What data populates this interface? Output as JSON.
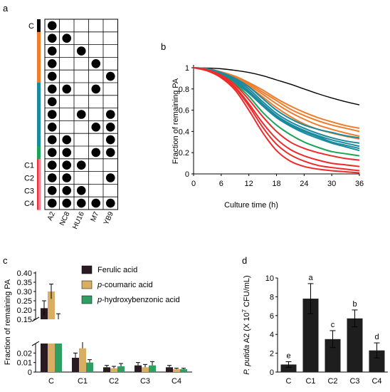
{
  "colors": {
    "black": "#000000",
    "orange": "#ef7d2d",
    "teal": "#1b8a9e",
    "green": "#1aa55a",
    "red": "#ee2b2b",
    "ferulic": "#2a1a22",
    "coumaric": "#d9ad62",
    "hydroxy": "#2f9e63",
    "bar_d": "#1e1e1e",
    "pink": "#f7b2d8"
  },
  "panel_a": {
    "label": "a",
    "columns": [
      "A2",
      "NC8",
      "HU16",
      "M7",
      "YB9"
    ],
    "row_labels": [
      "C",
      "",
      "",
      "",
      "",
      "",
      "",
      "",
      "",
      "",
      "",
      "C1",
      "C2",
      "C3",
      "C4"
    ],
    "row_groups": [
      "black",
      "orange",
      "orange",
      "orange",
      "orange",
      "teal",
      "teal",
      "teal",
      "teal",
      "teal",
      "green",
      "red",
      "red",
      "red",
      "red"
    ],
    "grid": [
      [
        1,
        0,
        0,
        0,
        0
      ],
      [
        1,
        1,
        0,
        0,
        0
      ],
      [
        1,
        0,
        1,
        0,
        0
      ],
      [
        1,
        0,
        0,
        1,
        0
      ],
      [
        1,
        0,
        0,
        0,
        1
      ],
      [
        1,
        1,
        0,
        1,
        0
      ],
      [
        1,
        0,
        0,
        0,
        0
      ],
      [
        1,
        0,
        1,
        0,
        1
      ],
      [
        1,
        0,
        0,
        1,
        1
      ],
      [
        1,
        1,
        0,
        0,
        1
      ],
      [
        1,
        1,
        0,
        1,
        1
      ],
      [
        1,
        1,
        1,
        0,
        0
      ],
      [
        1,
        1,
        0,
        0,
        1
      ],
      [
        1,
        1,
        1,
        0,
        0
      ],
      [
        1,
        1,
        1,
        1,
        1
      ]
    ]
  },
  "chart_data": [
    {
      "panel": "b",
      "type": "line",
      "xlabel": "Culture time (h)",
      "ylabel": "Fraction of remaining PA",
      "xlim": [
        0,
        36
      ],
      "ylim": [
        0,
        1
      ],
      "xticks": [
        "0",
        "6",
        "12",
        "18",
        "24",
        "30",
        "36"
      ],
      "yticks": [
        "0",
        "0.2",
        "0.4",
        "0.6",
        "0.8",
        "1"
      ],
      "x": [
        0,
        3,
        6,
        9,
        12,
        15,
        18,
        21,
        24,
        27,
        30,
        33,
        36
      ],
      "series": [
        {
          "color": "black",
          "values": [
            1.0,
            0.997,
            0.99,
            0.975,
            0.955,
            0.925,
            0.885,
            0.845,
            0.8,
            0.755,
            0.715,
            0.68,
            0.65
          ]
        },
        {
          "color": "orange",
          "values": [
            1.0,
            0.99,
            0.96,
            0.92,
            0.86,
            0.79,
            0.71,
            0.64,
            0.58,
            0.53,
            0.49,
            0.455,
            0.43
          ]
        },
        {
          "color": "orange",
          "values": [
            1.0,
            0.99,
            0.96,
            0.915,
            0.85,
            0.77,
            0.69,
            0.61,
            0.55,
            0.5,
            0.46,
            0.43,
            0.4
          ]
        },
        {
          "color": "orange",
          "values": [
            1.0,
            0.99,
            0.955,
            0.905,
            0.835,
            0.75,
            0.66,
            0.58,
            0.515,
            0.46,
            0.42,
            0.385,
            0.355
          ]
        },
        {
          "color": "orange",
          "values": [
            1.0,
            0.985,
            0.95,
            0.895,
            0.82,
            0.725,
            0.625,
            0.54,
            0.47,
            0.42,
            0.385,
            0.355,
            0.33
          ]
        },
        {
          "color": "teal",
          "values": [
            1.0,
            0.99,
            0.955,
            0.9,
            0.82,
            0.71,
            0.6,
            0.52,
            0.46,
            0.42,
            0.39,
            0.36,
            0.34
          ]
        },
        {
          "color": "teal",
          "values": [
            1.0,
            0.985,
            0.95,
            0.89,
            0.8,
            0.68,
            0.57,
            0.49,
            0.43,
            0.38,
            0.34,
            0.31,
            0.29
          ]
        },
        {
          "color": "teal",
          "values": [
            1.0,
            0.985,
            0.945,
            0.88,
            0.78,
            0.66,
            0.55,
            0.47,
            0.41,
            0.36,
            0.32,
            0.29,
            0.26
          ]
        },
        {
          "color": "teal",
          "values": [
            1.0,
            0.98,
            0.94,
            0.87,
            0.77,
            0.65,
            0.54,
            0.46,
            0.4,
            0.35,
            0.3,
            0.27,
            0.24
          ]
        },
        {
          "color": "teal",
          "values": [
            1.0,
            0.98,
            0.935,
            0.86,
            0.76,
            0.64,
            0.53,
            0.45,
            0.385,
            0.335,
            0.29,
            0.255,
            0.22
          ]
        },
        {
          "color": "green",
          "values": [
            1.0,
            0.98,
            0.93,
            0.85,
            0.73,
            0.58,
            0.46,
            0.37,
            0.3,
            0.25,
            0.21,
            0.19,
            0.17
          ]
        },
        {
          "color": "red",
          "values": [
            1.0,
            0.98,
            0.93,
            0.84,
            0.7,
            0.54,
            0.4,
            0.3,
            0.24,
            0.2,
            0.17,
            0.145,
            0.13
          ]
        },
        {
          "color": "red",
          "values": [
            1.0,
            0.975,
            0.92,
            0.82,
            0.66,
            0.48,
            0.33,
            0.23,
            0.17,
            0.13,
            0.1,
            0.085,
            0.07
          ]
        },
        {
          "color": "red",
          "values": [
            1.0,
            0.975,
            0.915,
            0.81,
            0.64,
            0.44,
            0.28,
            0.18,
            0.12,
            0.08,
            0.06,
            0.045,
            0.03
          ]
        },
        {
          "color": "red",
          "values": [
            1.0,
            0.97,
            0.905,
            0.79,
            0.6,
            0.39,
            0.22,
            0.12,
            0.07,
            0.045,
            0.03,
            0.02,
            0.01
          ]
        }
      ]
    },
    {
      "panel": "c",
      "type": "bar",
      "ylabel": "Fraction of remaining PA",
      "categories": [
        "C",
        "C1",
        "C2",
        "C3",
        "C4"
      ],
      "axis_break": {
        "lower": [
          0,
          0.03
        ],
        "upper": [
          0.15,
          0.4
        ]
      },
      "yticks_lower": [
        "0",
        "0.01",
        "0.02"
      ],
      "yticks_upper": [
        "0.15",
        "0.20",
        "0.25",
        "0.30",
        "0.35",
        "0.40"
      ],
      "series": [
        {
          "name": "Ferulic acid",
          "color": "ferulic",
          "values": [
            0.21,
            0.015,
            0.005,
            0.007,
            0.005
          ],
          "errors": [
            0.04,
            0.005,
            0.002,
            0.003,
            0.002
          ]
        },
        {
          "name": "p-coumaric acid",
          "color": "coumaric",
          "values": [
            0.3,
            0.025,
            0.004,
            0.005,
            0.003
          ],
          "errors": [
            0.04,
            0.007,
            0.002,
            0.003,
            0.001
          ]
        },
        {
          "name": "p-hydroxybenzonic acid",
          "color": "hydroxy",
          "values": [
            0.14,
            0.01,
            0.006,
            0.007,
            0.003
          ],
          "errors": [
            0.04,
            0.003,
            0.003,
            0.004,
            0.001
          ]
        }
      ]
    },
    {
      "panel": "d",
      "type": "bar",
      "ylabel": "P. putida A2 (X 10⁷ CFU/mL)",
      "ylim": [
        0,
        10
      ],
      "yticks": [
        "0",
        "2",
        "4",
        "6",
        "8",
        "10"
      ],
      "categories": [
        "C",
        "C1",
        "C2",
        "C3",
        "C4"
      ],
      "values": [
        0.8,
        7.8,
        3.5,
        5.7,
        2.3
      ],
      "errors": [
        0.3,
        1.6,
        0.9,
        0.9,
        0.8
      ],
      "letters": [
        "e",
        "a",
        "c",
        "b",
        "d"
      ]
    }
  ],
  "labels": {
    "panel_b": "b",
    "panel_c": "c",
    "panel_d": "d",
    "legend_c": [
      "Ferulic acid",
      "p-coumaric acid",
      "p-hydroxybenzonic acid"
    ],
    "ylabel_d_italic": "P. putida",
    "ylabel_d_rest": " A2 (X 10",
    "ylabel_d_sup": "7",
    "ylabel_d_end": " CFU/mL)"
  }
}
